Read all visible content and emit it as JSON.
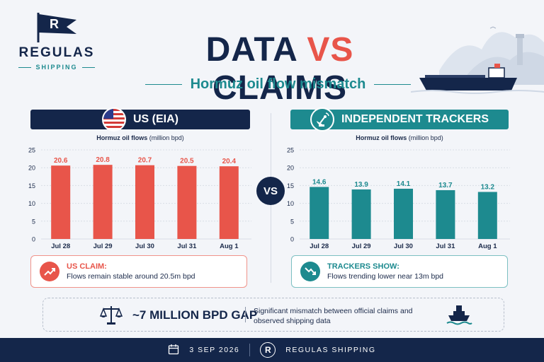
{
  "brand": {
    "name": "REGULAS",
    "sub": "SHIPPING",
    "logo_letter": "R"
  },
  "title": {
    "left": "DATA",
    "vs": "VS",
    "right": "CLAIMS"
  },
  "subtitle": "Hormuz oil flow mismatch",
  "vs_badge": "VS",
  "left_panel": {
    "header": "US (EIA)",
    "icon": "us-flag-icon",
    "chart_title": "Hormuz oil flows",
    "chart_unit": "(million bpd)",
    "claim_head": "US CLAIM:",
    "claim_text": "Flows remain stable around 20.5m bpd",
    "claim_icon": "trend-up-icon"
  },
  "right_panel": {
    "header": "INDEPENDENT TRACKERS",
    "icon": "satellite-dish-icon",
    "chart_title": "Hormuz oil flows",
    "chart_unit": "(million bpd)",
    "claim_head": "TRACKERS SHOW:",
    "claim_text": "Flows trending lower near 13m bpd",
    "claim_icon": "trend-down-icon"
  },
  "gap": {
    "title": "~7 MILLION BPD GAP",
    "text": "Significant mismatch between official claims and observed shipping data",
    "icon_left": "scale-icon",
    "icon_right": "ship-icon"
  },
  "footer": {
    "date": "3 SEP 2026",
    "logo_letter": "R",
    "name": "REGULAS SHIPPING"
  },
  "colors": {
    "navy": "#14264a",
    "coral": "#e8554a",
    "teal": "#1d8a8f",
    "bg": "#f3f5f9"
  },
  "chart_data": [
    {
      "type": "bar",
      "title": "Hormuz oil flows (million bpd)",
      "categories": [
        "Jul 28",
        "Jul 29",
        "Jul 30",
        "Jul 31",
        "Aug 1"
      ],
      "values": [
        20.6,
        20.8,
        20.7,
        20.5,
        20.4
      ],
      "value_labels": [
        "20.6",
        "20.8",
        "20.7",
        "20.5",
        "20.4"
      ],
      "yticks": [
        "0",
        "5",
        "10",
        "15",
        "20",
        "25"
      ],
      "ylim": [
        0,
        25
      ],
      "grid": true,
      "color": "#e8554a"
    },
    {
      "type": "bar",
      "title": "Hormuz oil flows (million bpd)",
      "categories": [
        "Jul 28",
        "Jul 29",
        "Jul 30",
        "Jul 31",
        "Aug 1"
      ],
      "values": [
        14.6,
        13.9,
        14.1,
        13.7,
        13.2
      ],
      "value_labels": [
        "14.6",
        "13.9",
        "14.1",
        "13.7",
        "13.2"
      ],
      "yticks": [
        "0",
        "5",
        "10",
        "15",
        "20",
        "25"
      ],
      "ylim": [
        0,
        25
      ],
      "grid": true,
      "color": "#1d8a8f"
    }
  ]
}
